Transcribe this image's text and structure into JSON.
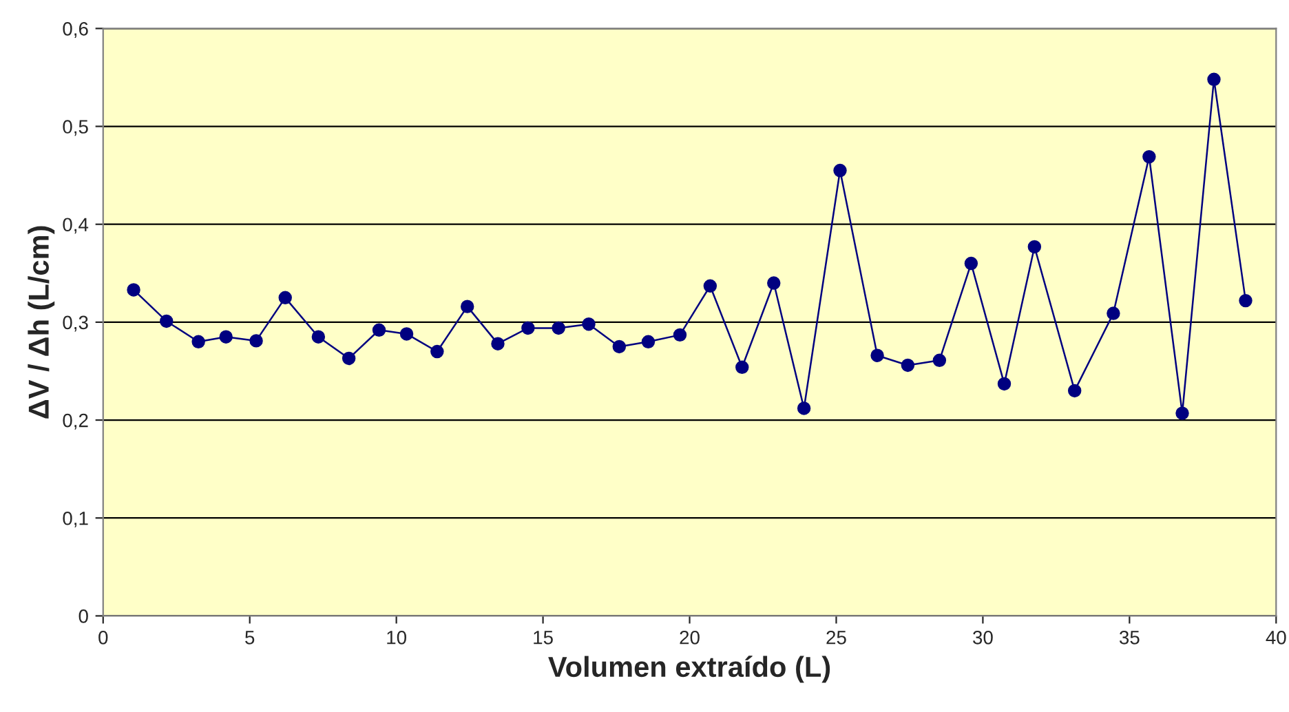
{
  "chart_data": {
    "type": "line",
    "xlabel": "Volumen extraído (L)",
    "ylabel": "ΔV / Δh (L/cm)",
    "x": [
      1.04,
      2.16,
      3.25,
      4.19,
      5.22,
      6.21,
      7.34,
      8.38,
      9.41,
      10.35,
      11.39,
      12.42,
      13.46,
      14.49,
      15.53,
      16.56,
      17.6,
      18.59,
      19.67,
      20.7,
      21.79,
      22.87,
      23.9,
      25.13,
      26.4,
      27.44,
      28.52,
      29.6,
      30.73,
      31.76,
      33.13,
      34.45,
      35.67,
      36.8,
      37.88,
      38.96
    ],
    "series": [
      {
        "color": "#000080",
        "values": [
          0.333,
          0.301,
          0.28,
          0.285,
          0.281,
          0.325,
          0.285,
          0.263,
          0.292,
          0.288,
          0.27,
          0.316,
          0.278,
          0.294,
          0.294,
          0.298,
          0.275,
          0.28,
          0.287,
          0.337,
          0.254,
          0.34,
          0.212,
          0.455,
          0.266,
          0.256,
          0.261,
          0.36,
          0.237,
          0.377,
          0.23,
          0.309,
          0.469,
          0.207,
          0.548,
          0.322
        ]
      }
    ],
    "xlim": [
      0,
      40
    ],
    "xticks": [
      0,
      5,
      10,
      15,
      20,
      25,
      30,
      35,
      40
    ],
    "ylim": [
      0,
      0.6
    ],
    "yticks": [
      {
        "value": 0,
        "label": "0"
      },
      {
        "value": 0.1,
        "label": "0,1"
      },
      {
        "value": 0.2,
        "label": "0,2"
      },
      {
        "value": 0.3,
        "label": "0,3"
      },
      {
        "value": 0.4,
        "label": "0,4"
      },
      {
        "value": 0.5,
        "label": "0,5"
      },
      {
        "value": 0.6,
        "label": "0,6"
      }
    ],
    "grid": "y",
    "marker": "circle",
    "line_style": "solid",
    "legend": false
  }
}
